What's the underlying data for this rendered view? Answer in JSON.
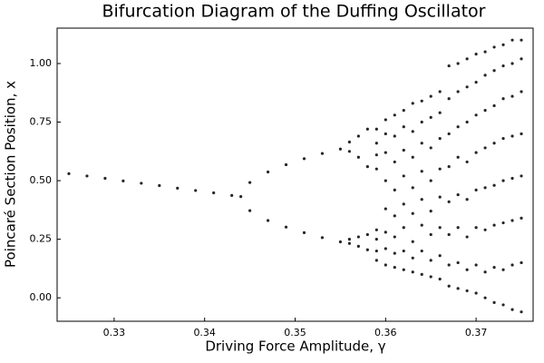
{
  "chart_data": {
    "type": "scatter",
    "title": "Bifurcation Diagram of the Duffing Oscillator",
    "x_label": "Driving Force Amplitude, γ",
    "y_label": "Poincaré Section Position, x",
    "color": "#000000",
    "grid": false,
    "xlim": [
      0.3237,
      0.3763
    ],
    "ylim": [
      -0.1,
      1.151
    ],
    "xticks": [
      0.33,
      0.34,
      0.35,
      0.36,
      0.37
    ],
    "yticks": [
      {
        "value": 0,
        "label": "0.00"
      },
      0.25,
      {
        "value": 0.5,
        "label": "0.50"
      },
      0.75,
      {
        "value": 1,
        "label": "1.00"
      }
    ],
    "x": [
      0.325,
      0.327,
      0.329,
      0.331,
      0.333,
      0.335,
      0.337,
      0.339,
      0.341,
      0.343,
      0.344,
      0.345,
      0.347,
      0.349,
      0.351,
      0.353,
      0.355,
      0.345,
      0.347,
      0.349,
      0.351,
      0.353,
      0.355,
      0.356,
      0.356,
      0.357,
      0.357,
      0.358,
      0.358,
      0.356,
      0.356,
      0.357,
      0.357,
      0.358,
      0.358,
      0.359,
      0.359,
      0.359,
      0.359,
      0.359,
      0.359,
      0.359,
      0.359,
      0.36,
      0.36,
      0.36,
      0.36,
      0.36,
      0.36,
      0.36,
      0.36,
      0.361,
      0.361,
      0.361,
      0.361,
      0.361,
      0.361,
      0.361,
      0.361,
      0.362,
      0.362,
      0.362,
      0.362,
      0.362,
      0.362,
      0.362,
      0.362,
      0.363,
      0.363,
      0.363,
      0.363,
      0.363,
      0.363,
      0.363,
      0.363,
      0.364,
      0.364,
      0.364,
      0.364,
      0.364,
      0.364,
      0.364,
      0.364,
      0.365,
      0.365,
      0.365,
      0.365,
      0.365,
      0.365,
      0.365,
      0.365,
      0.366,
      0.366,
      0.366,
      0.366,
      0.366,
      0.366,
      0.366,
      0.366,
      0.367,
      0.367,
      0.367,
      0.367,
      0.367,
      0.367,
      0.367,
      0.367,
      0.368,
      0.368,
      0.368,
      0.368,
      0.368,
      0.368,
      0.368,
      0.368,
      0.369,
      0.369,
      0.369,
      0.369,
      0.369,
      0.369,
      0.369,
      0.369,
      0.37,
      0.37,
      0.37,
      0.37,
      0.37,
      0.37,
      0.37,
      0.37,
      0.371,
      0.371,
      0.371,
      0.371,
      0.371,
      0.371,
      0.371,
      0.371,
      0.372,
      0.372,
      0.372,
      0.372,
      0.372,
      0.372,
      0.372,
      0.372,
      0.373,
      0.373,
      0.373,
      0.373,
      0.373,
      0.373,
      0.373,
      0.373,
      0.374,
      0.374,
      0.374,
      0.374,
      0.374,
      0.374,
      0.374,
      0.374,
      0.375,
      0.375,
      0.375,
      0.375,
      0.375,
      0.375,
      0.375,
      0.375
    ],
    "values": [
      0.53,
      0.52,
      0.51,
      0.499,
      0.489,
      0.479,
      0.468,
      0.458,
      0.448,
      0.437,
      0.432,
      0.492,
      0.537,
      0.568,
      0.594,
      0.616,
      0.635,
      0.372,
      0.33,
      0.302,
      0.278,
      0.257,
      0.239,
      0.665,
      0.625,
      0.69,
      0.6,
      0.72,
      0.56,
      0.25,
      0.232,
      0.26,
      0.22,
      0.27,
      0.205,
      0.72,
      0.66,
      0.61,
      0.55,
      0.29,
      0.25,
      0.2,
      0.16,
      0.76,
      0.7,
      0.62,
      0.5,
      0.38,
      0.28,
      0.21,
      0.14,
      0.78,
      0.69,
      0.58,
      0.46,
      0.35,
      0.26,
      0.19,
      0.13,
      0.8,
      0.73,
      0.63,
      0.52,
      0.4,
      0.3,
      0.2,
      0.12,
      0.83,
      0.71,
      0.6,
      0.47,
      0.36,
      0.24,
      0.17,
      0.11,
      0.84,
      0.75,
      0.66,
      0.54,
      0.42,
      0.31,
      0.2,
      0.1,
      0.86,
      0.77,
      0.64,
      0.5,
      0.37,
      0.27,
      0.16,
      0.09,
      0.88,
      0.79,
      0.68,
      0.55,
      0.43,
      0.3,
      0.18,
      0.08,
      0.99,
      0.85,
      0.7,
      0.56,
      0.41,
      0.27,
      0.14,
      0.05,
      1.0,
      0.88,
      0.73,
      0.6,
      0.44,
      0.3,
      0.15,
      0.04,
      1.02,
      0.9,
      0.75,
      0.58,
      0.42,
      0.26,
      0.12,
      0.03,
      1.04,
      0.92,
      0.78,
      0.62,
      0.46,
      0.3,
      0.14,
      0.02,
      1.05,
      0.95,
      0.8,
      0.64,
      0.47,
      0.29,
      0.11,
      0.0,
      1.07,
      0.97,
      0.82,
      0.66,
      0.48,
      0.31,
      0.13,
      -0.02,
      1.08,
      0.99,
      0.85,
      0.68,
      0.5,
      0.32,
      0.12,
      -0.03,
      1.1,
      1.0,
      0.86,
      0.69,
      0.51,
      0.33,
      0.14,
      -0.05,
      1.1,
      1.02,
      0.88,
      0.7,
      0.52,
      0.34,
      0.15,
      -0.06
    ]
  }
}
